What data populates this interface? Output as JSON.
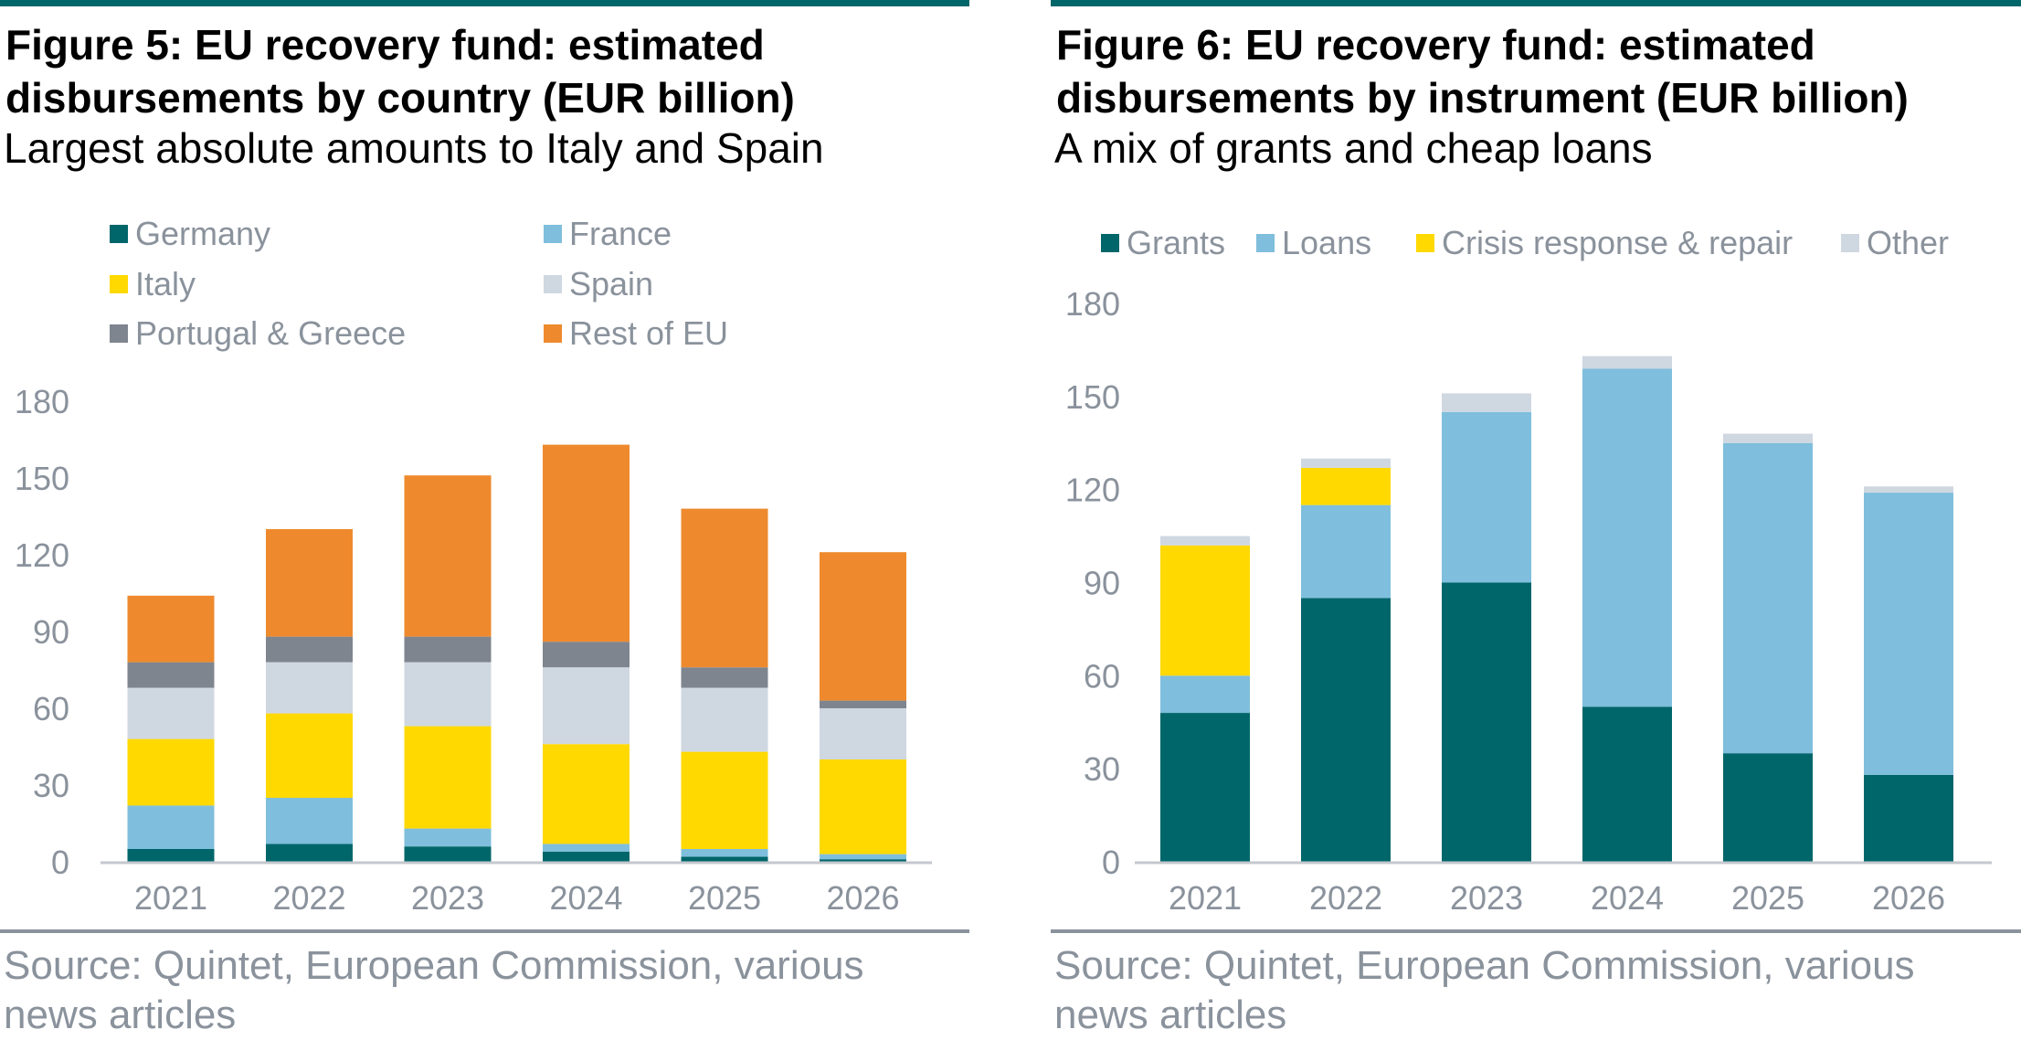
{
  "colors": {
    "teal": "#00666a",
    "light_blue": "#7fbedc",
    "yellow": "#ffd900",
    "light_grey": "#cfd7e1",
    "dark_grey": "#7f858f",
    "orange": "#ee8a2d",
    "text_grey": "#8a929c"
  },
  "left": {
    "title": "Figure 5: EU recovery fund: estimated disbursements by country (EUR billion)",
    "subtitle": "Largest absolute amounts to Italy and Spain",
    "source": "Source: Quintet, European Commission, various news articles"
  },
  "right": {
    "title": "Figure 6: EU recovery fund: estimated disbursements by instrument (EUR billion)",
    "subtitle": "A mix of grants and cheap loans",
    "source": "Source: Quintet, European Commission, various news articles"
  },
  "chart_data": [
    {
      "type": "bar",
      "stacked": true,
      "title": "Figure 5: EU recovery fund: estimated disbursements by country (EUR billion)",
      "subtitle": "Largest absolute amounts to Italy and Spain",
      "categories": [
        "2021",
        "2022",
        "2023",
        "2024",
        "2025",
        "2026"
      ],
      "ylim": [
        0,
        180
      ],
      "yticks": [
        0,
        30,
        60,
        90,
        120,
        150,
        180
      ],
      "grid": false,
      "legend_position": "top",
      "series": [
        {
          "name": "Germany",
          "color": "#00666a",
          "values": [
            5,
            7,
            6,
            4,
            2,
            1
          ]
        },
        {
          "name": "France",
          "color": "#7fbedc",
          "values": [
            17,
            18,
            7,
            3,
            3,
            2
          ]
        },
        {
          "name": "Italy",
          "color": "#ffd900",
          "values": [
            26,
            33,
            40,
            39,
            38,
            37
          ]
        },
        {
          "name": "Spain",
          "color": "#cfd7e1",
          "values": [
            20,
            20,
            25,
            30,
            25,
            20
          ]
        },
        {
          "name": "Portugal & Greece",
          "color": "#7f858f",
          "values": [
            10,
            10,
            10,
            10,
            8,
            3
          ]
        },
        {
          "name": "Rest of EU",
          "color": "#ee8a2d",
          "values": [
            26,
            42,
            63,
            77,
            62,
            58
          ]
        }
      ]
    },
    {
      "type": "bar",
      "stacked": true,
      "title": "Figure 6: EU recovery fund: estimated disbursements by instrument (EUR billion)",
      "subtitle": "A mix of grants and cheap loans",
      "categories": [
        "2021",
        "2022",
        "2023",
        "2024",
        "2025",
        "2026"
      ],
      "ylim": [
        0,
        180
      ],
      "yticks": [
        0,
        30,
        60,
        90,
        120,
        150,
        180
      ],
      "grid": false,
      "legend_position": "top",
      "series": [
        {
          "name": "Grants",
          "color": "#00666a",
          "values": [
            48,
            85,
            90,
            50,
            35,
            28
          ]
        },
        {
          "name": "Loans",
          "color": "#7fbedc",
          "values": [
            12,
            30,
            55,
            109,
            100,
            91
          ]
        },
        {
          "name": "Crisis response & repair",
          "color": "#ffd900",
          "values": [
            42,
            12,
            0,
            0,
            0,
            0
          ]
        },
        {
          "name": "Other",
          "color": "#cfd7e1",
          "values": [
            3,
            3,
            6,
            4,
            3,
            2
          ]
        }
      ]
    }
  ]
}
